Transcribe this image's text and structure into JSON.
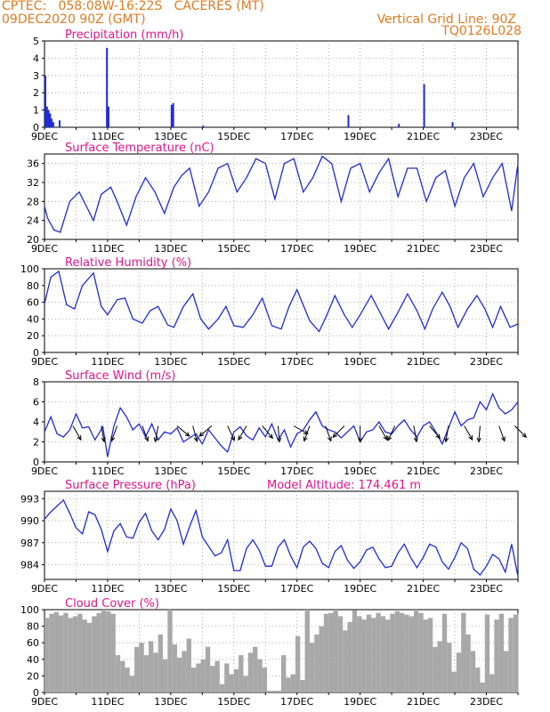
{
  "header": {
    "station": "CPTEC:   058:08W-16:22S   CACERES (MT)",
    "run": "09DEC2020 90Z (GMT)",
    "grid_line": "Vertical Grid Line: 90Z",
    "code": "TQ0126L028"
  },
  "colors": {
    "header": "#e07a20",
    "title": "#e0148c",
    "series": "#1f2bd6",
    "cloud": "#a8a8a8",
    "wind_arrow": "#000000",
    "axis": "#000000",
    "grid": "#9a9a9a"
  },
  "chart_data": [
    {
      "id": "precip",
      "type": "bar",
      "title": "Precipitation (mm/h)",
      "ylim": [
        0,
        5
      ],
      "yticks": [
        0,
        1,
        2,
        3,
        4,
        5
      ],
      "xticks": [
        "9DEC",
        "11DEC",
        "13DEC",
        "15DEC",
        "17DEC",
        "19DEC",
        "21DEC",
        "23DEC"
      ],
      "xlim_days": [
        9,
        24
      ],
      "x_day": [
        9.0,
        9.05,
        9.1,
        9.15,
        9.2,
        9.25,
        9.45,
        10.95,
        11.0,
        13.0,
        13.05,
        14.0,
        18.6,
        20.2,
        21.0,
        21.9
      ],
      "values": [
        3.0,
        1.2,
        1.0,
        0.8,
        0.5,
        0.3,
        0.4,
        4.6,
        1.2,
        1.3,
        1.4,
        0.1,
        0.7,
        0.2,
        2.5,
        0.3
      ]
    },
    {
      "id": "temp",
      "type": "line",
      "title": "Surface Temperature (nC)",
      "ylim": [
        20,
        38
      ],
      "yticks": [
        20,
        24,
        28,
        32,
        36
      ],
      "xticks": [
        "9DEC",
        "11DEC",
        "13DEC",
        "15DEC",
        "17DEC",
        "19DEC",
        "21DEC",
        "23DEC"
      ],
      "xlim_days": [
        9,
        24
      ],
      "x_day": [
        9.0,
        9.1,
        9.3,
        9.5,
        9.8,
        10.1,
        10.4,
        10.55,
        10.8,
        11.1,
        11.3,
        11.6,
        11.9,
        12.2,
        12.5,
        12.8,
        13.1,
        13.35,
        13.6,
        13.9,
        14.2,
        14.5,
        14.8,
        15.1,
        15.4,
        15.7,
        16.0,
        16.3,
        16.6,
        16.9,
        17.2,
        17.5,
        17.8,
        18.1,
        18.4,
        18.7,
        19.0,
        19.3,
        19.6,
        19.9,
        20.2,
        20.5,
        20.8,
        21.1,
        21.4,
        21.7,
        22.0,
        22.3,
        22.6,
        22.9,
        23.2,
        23.5,
        23.8,
        24.0
      ],
      "values": [
        27,
        24.5,
        22,
        21.5,
        28,
        30,
        26,
        24,
        29.5,
        31,
        28,
        23,
        29,
        33,
        30,
        25.5,
        31,
        33.5,
        35,
        27,
        30,
        35,
        36,
        30,
        33,
        37,
        36,
        28.5,
        36,
        37,
        30,
        33,
        37.5,
        36,
        28,
        35,
        36,
        30,
        34,
        37,
        29,
        35,
        35,
        28,
        33,
        34.5,
        27,
        33,
        36,
        29,
        33,
        36,
        26,
        36
      ]
    },
    {
      "id": "rh",
      "type": "line",
      "title": "Relative Humidity (%)",
      "ylim": [
        0,
        100
      ],
      "yticks": [
        0,
        20,
        40,
        60,
        80,
        100
      ],
      "xticks": [
        "9DEC",
        "11DEC",
        "13DEC",
        "15DEC",
        "17DEC",
        "19DEC",
        "21DEC",
        "23DEC"
      ],
      "xlim_days": [
        9,
        24
      ],
      "x_day": [
        9.0,
        9.2,
        9.45,
        9.7,
        9.95,
        10.2,
        10.55,
        10.8,
        11.0,
        11.3,
        11.55,
        11.8,
        12.1,
        12.35,
        12.6,
        12.9,
        13.1,
        13.4,
        13.7,
        13.95,
        14.2,
        14.5,
        14.75,
        15.0,
        15.3,
        15.6,
        15.9,
        16.2,
        16.5,
        16.75,
        17.0,
        17.4,
        17.7,
        17.95,
        18.2,
        18.5,
        18.75,
        19.0,
        19.35,
        19.6,
        19.9,
        20.2,
        20.5,
        20.8,
        21.05,
        21.3,
        21.6,
        21.85,
        22.1,
        22.4,
        22.7,
        22.95,
        23.2,
        23.45,
        23.75,
        24.0
      ],
      "values": [
        58,
        90,
        97,
        57,
        52,
        80,
        95,
        55,
        45,
        63,
        65,
        40,
        35,
        50,
        55,
        33,
        30,
        55,
        70,
        40,
        28,
        40,
        55,
        32,
        30,
        45,
        65,
        32,
        28,
        55,
        75,
        38,
        25,
        45,
        68,
        45,
        30,
        45,
        68,
        50,
        28,
        48,
        70,
        50,
        28,
        52,
        72,
        55,
        30,
        52,
        68,
        52,
        30,
        55,
        30,
        34
      ]
    },
    {
      "id": "wind",
      "type": "line",
      "title": "Surface Wind (m/s)",
      "ylim": [
        0,
        8
      ],
      "yticks": [
        0,
        2,
        4,
        6,
        8
      ],
      "xticks": [
        "9DEC",
        "11DEC",
        "13DEC",
        "15DEC",
        "17DEC",
        "19DEC",
        "21DEC",
        "23DEC"
      ],
      "xlim_days": [
        9,
        24
      ],
      "x_day": [
        9.0,
        9.2,
        9.4,
        9.6,
        9.8,
        10.0,
        10.2,
        10.4,
        10.6,
        10.85,
        11.0,
        11.2,
        11.4,
        11.6,
        11.8,
        12.0,
        12.2,
        12.4,
        12.6,
        12.8,
        13.0,
        13.2,
        13.4,
        13.6,
        13.8,
        14.0,
        14.2,
        14.4,
        14.6,
        14.8,
        15.0,
        15.2,
        15.4,
        15.6,
        15.8,
        16.0,
        16.2,
        16.4,
        16.6,
        16.8,
        17.0,
        17.2,
        17.4,
        17.6,
        17.8,
        18.0,
        18.2,
        18.4,
        18.6,
        18.8,
        19.0,
        19.2,
        19.4,
        19.6,
        19.8,
        20.0,
        20.2,
        20.4,
        20.6,
        20.8,
        21.0,
        21.2,
        21.4,
        21.6,
        21.8,
        22.0,
        22.2,
        22.4,
        22.6,
        22.8,
        23.0,
        23.2,
        23.4,
        23.6,
        23.8,
        24.0
      ],
      "values": [
        3.0,
        4.5,
        2.8,
        2.5,
        3.2,
        4.8,
        3.4,
        3.5,
        2.2,
        3.5,
        0.5,
        3.6,
        5.4,
        4.5,
        3.2,
        3.8,
        2.5,
        3.8,
        2.2,
        3.0,
        2.8,
        3.4,
        2.0,
        2.4,
        2.8,
        1.8,
        3.2,
        2.4,
        1.6,
        1.0,
        3.0,
        3.5,
        2.6,
        2.2,
        3.4,
        2.5,
        3.8,
        2.2,
        3.2,
        1.5,
        2.8,
        3.2,
        4.2,
        5.0,
        3.6,
        3.2,
        3.0,
        2.4,
        3.0,
        3.6,
        2.0,
        3.0,
        3.2,
        4.0,
        3.0,
        2.8,
        3.6,
        4.2,
        3.2,
        2.5,
        3.6,
        4.0,
        3.0,
        1.8,
        3.4,
        5.0,
        3.6,
        4.2,
        4.4,
        6.0,
        5.2,
        6.8,
        5.4,
        4.8,
        5.2,
        6.0
      ]
    },
    {
      "id": "pressure",
      "type": "line",
      "title": "Surface Pressure (hPa)",
      "annotation": "Model Altitude: 174.461  m",
      "ylim": [
        982,
        994
      ],
      "yticks": [
        984,
        987,
        990,
        993
      ],
      "xticks": [
        "9DEC",
        "11DEC",
        "13DEC",
        "15DEC",
        "17DEC",
        "19DEC",
        "21DEC",
        "23DEC"
      ],
      "xlim_days": [
        9,
        24
      ],
      "x_day": [
        9.0,
        9.2,
        9.4,
        9.6,
        9.8,
        10.0,
        10.2,
        10.4,
        10.6,
        10.8,
        11.0,
        11.2,
        11.4,
        11.6,
        11.8,
        12.0,
        12.2,
        12.4,
        12.6,
        12.8,
        13.0,
        13.2,
        13.4,
        13.6,
        13.8,
        14.0,
        14.2,
        14.4,
        14.6,
        14.8,
        15.0,
        15.2,
        15.4,
        15.6,
        15.8,
        16.0,
        16.2,
        16.4,
        16.6,
        16.8,
        17.0,
        17.2,
        17.4,
        17.6,
        17.8,
        18.0,
        18.2,
        18.4,
        18.6,
        18.8,
        19.0,
        19.2,
        19.4,
        19.6,
        19.8,
        20.0,
        20.2,
        20.4,
        20.6,
        20.8,
        21.0,
        21.2,
        21.4,
        21.6,
        21.8,
        22.0,
        22.2,
        22.4,
        22.6,
        22.8,
        23.0,
        23.2,
        23.4,
        23.6,
        23.8,
        24.0
      ],
      "values": [
        990.2,
        991.2,
        992.0,
        992.8,
        991.0,
        989.0,
        988.2,
        991.2,
        990.8,
        988.8,
        985.8,
        988.6,
        989.6,
        987.8,
        987.6,
        989.8,
        991.0,
        988.6,
        987.4,
        988.8,
        991.6,
        990.0,
        986.8,
        989.2,
        991.4,
        987.8,
        986.5,
        985.2,
        985.6,
        987.4,
        983.2,
        983.2,
        986.2,
        987.4,
        986.0,
        983.8,
        983.8,
        986.4,
        987.4,
        985.2,
        983.6,
        986.4,
        987.2,
        986.2,
        984.2,
        983.6,
        985.8,
        986.6,
        984.6,
        983.5,
        984.4,
        986.0,
        986.4,
        984.8,
        983.6,
        983.8,
        985.6,
        986.8,
        985.0,
        983.6,
        985.0,
        986.8,
        986.4,
        984.4,
        983.4,
        985.0,
        987.0,
        986.2,
        983.4,
        982.6,
        983.8,
        985.4,
        984.8,
        983.0,
        986.8,
        982.4
      ]
    },
    {
      "id": "cloud",
      "type": "area",
      "title": "Cloud Cover (%)",
      "ylim": [
        0,
        100
      ],
      "yticks": [
        0,
        20,
        40,
        60,
        80,
        100
      ],
      "xticks": [
        "9DEC",
        "11DEC",
        "13DEC",
        "15DEC",
        "17DEC",
        "19DEC",
        "21DEC",
        "23DEC"
      ],
      "xlim_days": [
        9,
        24
      ],
      "x_day": [
        9.0,
        9.15,
        9.3,
        9.45,
        9.6,
        9.75,
        9.9,
        10.05,
        10.2,
        10.35,
        10.5,
        10.65,
        10.8,
        10.95,
        11.1,
        11.25,
        11.4,
        11.55,
        11.7,
        11.85,
        12.0,
        12.15,
        12.3,
        12.45,
        12.6,
        12.75,
        12.9,
        13.05,
        13.2,
        13.35,
        13.5,
        13.65,
        13.8,
        13.95,
        14.1,
        14.25,
        14.4,
        14.55,
        14.7,
        14.85,
        15.0,
        15.15,
        15.3,
        15.45,
        15.6,
        15.75,
        15.9,
        16.05,
        16.2,
        16.35,
        16.5,
        16.65,
        16.8,
        16.95,
        17.1,
        17.25,
        17.4,
        17.55,
        17.7,
        17.85,
        18.0,
        18.15,
        18.3,
        18.45,
        18.6,
        18.75,
        18.9,
        19.05,
        19.2,
        19.35,
        19.5,
        19.65,
        19.8,
        19.95,
        20.1,
        20.25,
        20.4,
        20.55,
        20.7,
        20.85,
        21.0,
        21.15,
        21.3,
        21.45,
        21.6,
        21.75,
        21.9,
        22.05,
        22.2,
        22.35,
        22.5,
        22.65,
        22.8,
        22.95,
        23.1,
        23.25,
        23.4,
        23.55,
        23.7,
        23.85,
        24.0
      ],
      "values": [
        90,
        95,
        97,
        93,
        96,
        90,
        92,
        95,
        88,
        84,
        92,
        96,
        100,
        98,
        95,
        45,
        38,
        30,
        20,
        55,
        60,
        45,
        62,
        48,
        70,
        40,
        100,
        58,
        42,
        50,
        65,
        30,
        35,
        40,
        55,
        32,
        38,
        10,
        35,
        22,
        28,
        45,
        20,
        48,
        55,
        40,
        30,
        2,
        2,
        2,
        45,
        18,
        22,
        68,
        15,
        100,
        60,
        70,
        80,
        95,
        96,
        100,
        92,
        75,
        85,
        99,
        92,
        88,
        94,
        90,
        96,
        92,
        88,
        95,
        98,
        96,
        94,
        92,
        100,
        96,
        88,
        90,
        55,
        62,
        95,
        60,
        25,
        48,
        96,
        70,
        50,
        30,
        12,
        94,
        22,
        88,
        95,
        50,
        90,
        94,
        96
      ]
    }
  ],
  "wind_arrows": {
    "x_day": [
      9.9,
      10.8,
      11.3,
      12.1,
      12.6,
      13.2,
      13.7,
      14.3,
      14.8,
      15.4,
      15.9,
      16.4,
      16.9,
      17.4,
      17.9,
      18.5,
      19.0,
      19.6,
      20.1,
      20.7,
      21.2,
      21.8,
      22.3,
      22.8,
      23.4,
      23.9
    ],
    "dir_deg": [
      150,
      170,
      200,
      160,
      190,
      130,
      165,
      230,
      155,
      210,
      140,
      175,
      120,
      200,
      160,
      225,
      180,
      150,
      205,
      170,
      140,
      190,
      150,
      185,
      160,
      135
    ]
  }
}
